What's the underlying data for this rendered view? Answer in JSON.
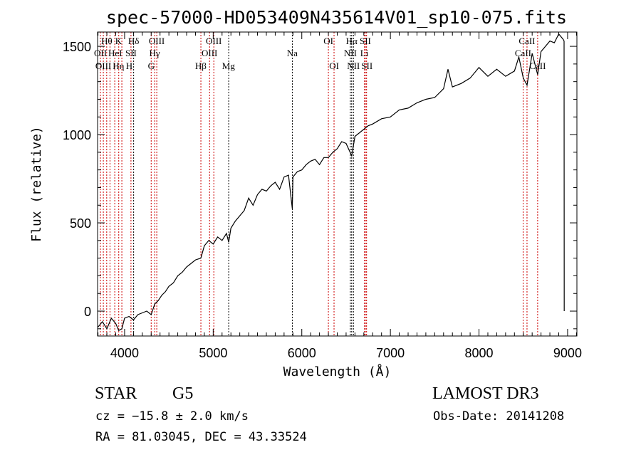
{
  "chart_data": {
    "type": "line",
    "title": "spec-57000-HD053409N435614V01_sp10-075.fits",
    "xlabel": "Wavelength (Å)",
    "ylabel": "Flux (relative)",
    "xlim": [
      3695,
      9105
    ],
    "ylim": [
      -141,
      1581
    ],
    "xticks": [
      4000,
      5000,
      6000,
      7000,
      8000,
      9000
    ],
    "xtick_labels": [
      "4000",
      "5000",
      "6000",
      "7000",
      "8000",
      "9000"
    ],
    "yticks": [
      0,
      500,
      1000,
      1500
    ],
    "ytick_labels": [
      "0",
      "500",
      "1000",
      "1500"
    ],
    "grid": false,
    "series": [
      {
        "name": "spectrum",
        "points": [
          [
            3700,
            -90
          ],
          [
            3750,
            -60
          ],
          [
            3800,
            -100
          ],
          [
            3850,
            -40
          ],
          [
            3900,
            -70
          ],
          [
            3934,
            -110
          ],
          [
            3969,
            -100
          ],
          [
            4000,
            -40
          ],
          [
            4050,
            -30
          ],
          [
            4100,
            -50
          ],
          [
            4150,
            -20
          ],
          [
            4200,
            -10
          ],
          [
            4250,
            0
          ],
          [
            4300,
            -20
          ],
          [
            4340,
            40
          ],
          [
            4380,
            60
          ],
          [
            4420,
            90
          ],
          [
            4460,
            110
          ],
          [
            4500,
            140
          ],
          [
            4550,
            160
          ],
          [
            4600,
            200
          ],
          [
            4650,
            220
          ],
          [
            4700,
            250
          ],
          [
            4750,
            270
          ],
          [
            4800,
            290
          ],
          [
            4861,
            300
          ],
          [
            4900,
            370
          ],
          [
            4950,
            400
          ],
          [
            5000,
            380
          ],
          [
            5050,
            420
          ],
          [
            5100,
            400
          ],
          [
            5150,
            440
          ],
          [
            5175,
            390
          ],
          [
            5200,
            470
          ],
          [
            5250,
            510
          ],
          [
            5300,
            540
          ],
          [
            5350,
            570
          ],
          [
            5400,
            640
          ],
          [
            5450,
            600
          ],
          [
            5500,
            660
          ],
          [
            5550,
            690
          ],
          [
            5600,
            680
          ],
          [
            5650,
            710
          ],
          [
            5700,
            730
          ],
          [
            5750,
            690
          ],
          [
            5800,
            760
          ],
          [
            5850,
            770
          ],
          [
            5893,
            580
          ],
          [
            5900,
            760
          ],
          [
            5950,
            790
          ],
          [
            6000,
            800
          ],
          [
            6050,
            830
          ],
          [
            6100,
            850
          ],
          [
            6150,
            860
          ],
          [
            6200,
            830
          ],
          [
            6250,
            870
          ],
          [
            6300,
            870
          ],
          [
            6350,
            900
          ],
          [
            6400,
            920
          ],
          [
            6450,
            960
          ],
          [
            6500,
            950
          ],
          [
            6563,
            880
          ],
          [
            6600,
            990
          ],
          [
            6650,
            1010
          ],
          [
            6700,
            1030
          ],
          [
            6750,
            1050
          ],
          [
            6800,
            1060
          ],
          [
            6900,
            1090
          ],
          [
            7000,
            1100
          ],
          [
            7100,
            1140
          ],
          [
            7200,
            1150
          ],
          [
            7300,
            1180
          ],
          [
            7400,
            1200
          ],
          [
            7500,
            1210
          ],
          [
            7600,
            1260
          ],
          [
            7650,
            1370
          ],
          [
            7700,
            1270
          ],
          [
            7800,
            1290
          ],
          [
            7900,
            1320
          ],
          [
            8000,
            1380
          ],
          [
            8100,
            1330
          ],
          [
            8200,
            1370
          ],
          [
            8300,
            1330
          ],
          [
            8400,
            1360
          ],
          [
            8450,
            1440
          ],
          [
            8500,
            1320
          ],
          [
            8542,
            1280
          ],
          [
            8600,
            1460
          ],
          [
            8662,
            1340
          ],
          [
            8700,
            1470
          ],
          [
            8750,
            1500
          ],
          [
            8800,
            1530
          ],
          [
            8850,
            1520
          ],
          [
            8900,
            1570
          ],
          [
            8950,
            1540
          ],
          [
            8960,
            1530
          ],
          [
            8962,
            0
          ]
        ]
      }
    ],
    "lines": [
      {
        "label": "Hθ",
        "wl": 3798,
        "color": "#cc0000",
        "row": 1
      },
      {
        "label": "K",
        "wl": 3934,
        "color": "#cc0000",
        "row": 1
      },
      {
        "label": "Hδ",
        "wl": 4102,
        "color": "#000000",
        "row": 1
      },
      {
        "label": "OIII",
        "wl": 4363,
        "color": "#cc0000",
        "row": 1
      },
      {
        "label": "OIII",
        "wl": 5007,
        "color": "#cc0000",
        "row": 1
      },
      {
        "label": "OII",
        "wl": 3727,
        "color": "#cc0000",
        "row": 2
      },
      {
        "label": "HeI",
        "wl": 3889,
        "color": "#cc0000",
        "row": 2
      },
      {
        "label": "SII",
        "wl": 4072,
        "color": "#cc0000",
        "row": 2
      },
      {
        "label": "Hγ",
        "wl": 4340,
        "color": "#cc0000",
        "row": 2
      },
      {
        "label": "OIII",
        "wl": 4959,
        "color": "#cc0000",
        "row": 2
      },
      {
        "label": "OIII",
        "wl": 3760,
        "color": "#cc0000",
        "row": 3
      },
      {
        "label": "Hη",
        "wl": 3835,
        "color": "#cc0000",
        "row": 3
      },
      {
        "label": "H",
        "wl": 3969,
        "color": "#cc0000",
        "row": 3
      },
      {
        "label": "G",
        "wl": 4300,
        "color": "#cc0000",
        "row": 3
      },
      {
        "label": "Hβ",
        "wl": 4861,
        "color": "#cc0000",
        "row": 3
      },
      {
        "label": "Mg",
        "wl": 5175,
        "color": "#000000",
        "row": 3
      },
      {
        "label": "Na",
        "wl": 5893,
        "color": "#000000",
        "row": 2
      },
      {
        "label": "OI",
        "wl": 6300,
        "color": "#cc0000",
        "row": 1
      },
      {
        "label": "Hα",
        "wl": 6563,
        "color": "#000000",
        "row": 1
      },
      {
        "label": "SII",
        "wl": 6717,
        "color": "#cc0000",
        "row": 1
      },
      {
        "label": "NII",
        "wl": 6548,
        "color": "#000000",
        "row": 2
      },
      {
        "label": "Li",
        "wl": 6708,
        "color": "#cc0000",
        "row": 2
      },
      {
        "label": "OI",
        "wl": 6364,
        "color": "#cc0000",
        "row": 3
      },
      {
        "label": "NII",
        "wl": 6583,
        "color": "#000000",
        "row": 3
      },
      {
        "label": "SII",
        "wl": 6731,
        "color": "#cc0000",
        "row": 3
      },
      {
        "label": "CaII",
        "wl": 8542,
        "color": "#cc0000",
        "row": 1
      },
      {
        "label": "CaII",
        "wl": 8498,
        "color": "#cc0000",
        "row": 2
      },
      {
        "label": "CaII",
        "wl": 8662,
        "color": "#cc0000",
        "row": 3
      }
    ]
  },
  "info": {
    "class": "STAR",
    "subclass": "G5",
    "survey": "LAMOST DR3",
    "cz": "cz = −15.8 ± 2.0 km/s",
    "obs_date": "Obs-Date: 20141208",
    "coords": "RA =  81.03045, DEC =  43.33524"
  }
}
